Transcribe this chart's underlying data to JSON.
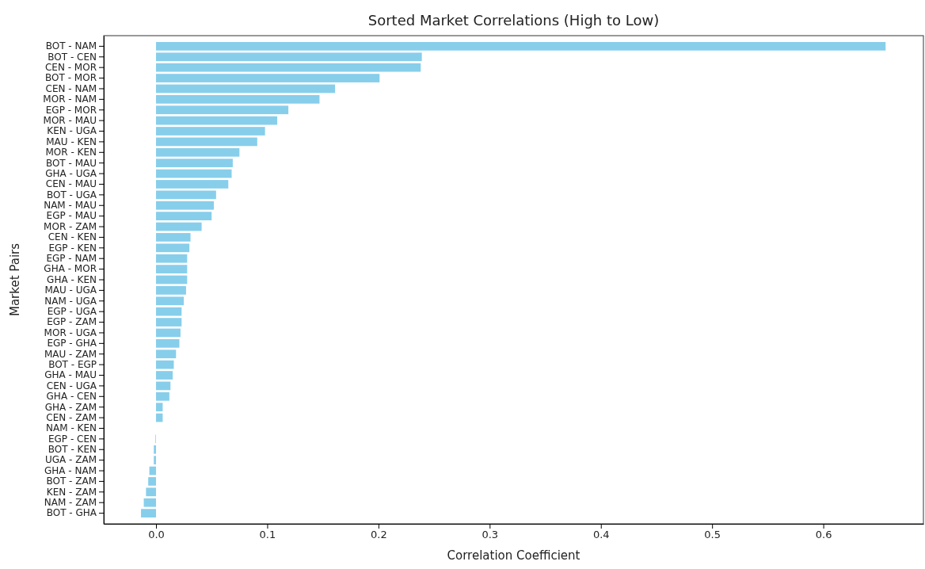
{
  "chart_data": {
    "type": "bar",
    "orientation": "horizontal",
    "title": "Sorted Market Correlations (High to Low)",
    "xlabel": "Correlation Coefficient",
    "ylabel": "Market Pairs",
    "categories": [
      "BOT - NAM",
      "BOT - CEN",
      "CEN - MOR",
      "BOT - MOR",
      "CEN - NAM",
      "MOR - NAM",
      "EGP - MOR",
      "MOR - MAU",
      "KEN - UGA",
      "MAU - KEN",
      "MOR - KEN",
      "BOT - MAU",
      "GHA - UGA",
      "CEN - MAU",
      "BOT - UGA",
      "NAM - MAU",
      "EGP - MAU",
      "MOR - ZAM",
      "CEN - KEN",
      "EGP - KEN",
      "EGP - NAM",
      "GHA - MOR",
      "GHA - KEN",
      "MAU - UGA",
      "NAM - UGA",
      "EGP - UGA",
      "EGP - ZAM",
      "MOR - UGA",
      "EGP - GHA",
      "MAU - ZAM",
      "BOT - EGP",
      "GHA - MAU",
      "CEN - UGA",
      "GHA - CEN",
      "GHA - ZAM",
      "CEN - ZAM",
      "NAM - KEN",
      "EGP - CEN",
      "BOT - KEN",
      "UGA - ZAM",
      "GHA - NAM",
      "BOT - ZAM",
      "KEN - ZAM",
      "NAM - ZAM",
      "BOT - GHA"
    ],
    "values": [
      0.656,
      0.239,
      0.238,
      0.201,
      0.161,
      0.147,
      0.119,
      0.109,
      0.098,
      0.091,
      0.075,
      0.069,
      0.068,
      0.065,
      0.054,
      0.052,
      0.05,
      0.041,
      0.031,
      0.03,
      0.028,
      0.028,
      0.028,
      0.027,
      0.025,
      0.023,
      0.023,
      0.022,
      0.021,
      0.018,
      0.016,
      0.015,
      0.013,
      0.012,
      0.006,
      0.006,
      0.0,
      -0.0005,
      -0.002,
      -0.002,
      -0.006,
      -0.007,
      -0.009,
      -0.011,
      -0.0135
    ],
    "color": "#87ceeb",
    "xlim": [
      -0.047,
      0.69
    ],
    "xticks": [
      {
        "value": 0,
        "label": "0.0"
      },
      0.1,
      0.2,
      0.3,
      0.4,
      0.5,
      0.6
    ],
    "grid": false
  }
}
